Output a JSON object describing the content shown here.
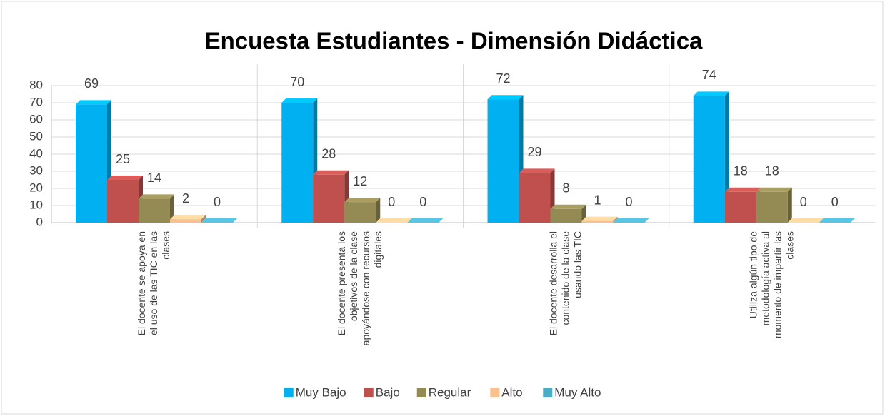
{
  "chart_data": {
    "type": "bar",
    "title": "Encuesta Estudiantes - Dimensión Didáctica",
    "categories": [
      "El docente se apoya en el uso de las TIC en las clases",
      "El docente presenta los objetivos de la clase apoyándose con recursos digitales",
      "El docente desarrolla el contenido de la clase usando las TIC",
      "Utiliza algún tipo de metodología activa al momento de impartir las clases"
    ],
    "series": [
      {
        "name": "Muy Bajo",
        "color": "#00b0f0",
        "values": [
          69,
          70,
          72,
          74
        ]
      },
      {
        "name": "Bajo",
        "color": "#c0504d",
        "values": [
          25,
          28,
          29,
          18
        ]
      },
      {
        "name": "Regular",
        "color": "#948a54",
        "values": [
          14,
          12,
          8,
          18
        ]
      },
      {
        "name": "Alto",
        "color": "#fac090",
        "values": [
          2,
          0,
          1,
          0
        ]
      },
      {
        "name": "Muy Alto",
        "color": "#4bacc6",
        "values": [
          0,
          0,
          0,
          0
        ]
      }
    ],
    "ylim": [
      0,
      80
    ],
    "yticks": [
      0,
      10,
      20,
      30,
      40,
      50,
      60,
      70,
      80
    ],
    "grid": true,
    "legend": "bottom"
  }
}
